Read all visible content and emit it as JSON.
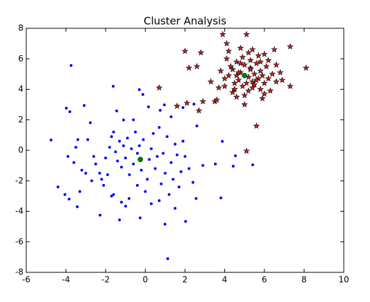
{
  "chart_data": {
    "type": "scatter",
    "title": "Cluster Analysis",
    "xlim": [
      -6,
      10
    ],
    "ylim": [
      -8,
      8
    ],
    "xticks": [
      -6,
      -4,
      -2,
      0,
      2,
      4,
      6,
      8,
      10
    ],
    "yticks": [
      -8,
      -6,
      -4,
      -2,
      0,
      2,
      4,
      6,
      8
    ],
    "series": [
      {
        "color": "#0000ff",
        "marker": "dot",
        "x": [
          -4.75,
          -3.74,
          -3.98,
          -3.8,
          -3.08,
          -2.77,
          -1.62,
          -0.3,
          -0.12,
          0.16,
          -1.44,
          -1.1,
          1.13,
          0.99,
          2.03,
          2.56,
          2.9,
          3.88,
          3.81,
          4.43,
          4.54,
          5.41,
          3.53,
          0.75,
          0.96,
          2.45,
          -2.28,
          -4.4,
          -4.05,
          -3.84,
          -3.43,
          -1.3,
          -0.26,
          -0.99,
          -0.82,
          -3.9,
          -3.5,
          -3.4,
          -3.6,
          -3.2,
          -3.0,
          -2.6,
          -2.5,
          -2.3,
          -2.2,
          -2.1,
          -1.9,
          -1.8,
          -1.7,
          -1.6,
          -1.5,
          -1.4,
          -1.3,
          -1.2,
          -1.1,
          -1.0,
          -0.9,
          -0.8,
          -0.7,
          -0.6,
          -0.5,
          -0.4,
          -0.3,
          -0.2,
          -0.1,
          0.0,
          0.2,
          0.3,
          0.4,
          0.5,
          0.6,
          0.7,
          0.8,
          0.9,
          1.0,
          1.1,
          1.2,
          1.3,
          1.4,
          1.5,
          1.6,
          1.7,
          1.8,
          1.9,
          2.0,
          2.2,
          2.4,
          2.6,
          -2.0,
          -1.6,
          -1.2,
          -0.4,
          0.3,
          1.5,
          -2.7,
          -3.3,
          -1.7,
          -0.6,
          0.1,
          1.3,
          1.9,
          -2.9,
          0.7
        ],
        "y": [
          0.68,
          5.56,
          2.76,
          2.53,
          2.94,
          1.81,
          4.2,
          3.98,
          3.66,
          2.85,
          2.58,
          1.99,
          -7.1,
          -4.84,
          -4.66,
          -3.16,
          -0.99,
          0.59,
          -3.12,
          -1.04,
          -0.36,
          -0.95,
          -0.9,
          2.62,
          2.98,
          3.03,
          -4.25,
          -2.4,
          -2.9,
          -3.2,
          -3.7,
          -4.56,
          -4.43,
          -3.66,
          -3.16,
          -0.4,
          0.2,
          0.7,
          -0.8,
          -1.3,
          -1.5,
          -0.4,
          -0.9,
          -1.5,
          -1.9,
          -2.3,
          -1.6,
          0.2,
          0.9,
          1.2,
          -0.1,
          -0.7,
          0.6,
          -1.1,
          0.3,
          -0.5,
          0.8,
          -1.6,
          0.1,
          -0.9,
          1.2,
          -0.2,
          0.3,
          -1.3,
          0.7,
          -2.7,
          -0.6,
          0.1,
          1.1,
          -1.2,
          -0.4,
          1.5,
          -2.2,
          -0.2,
          -1.5,
          0.9,
          -2.9,
          -0.8,
          -1.9,
          0.4,
          -0.3,
          -2.4,
          -1.4,
          0.6,
          -0.4,
          -1.2,
          -2.1,
          1.6,
          -0.5,
          -2.9,
          -3.4,
          -2.3,
          -3.5,
          -3.8,
          -2.0,
          -2.7,
          -3.0,
          2.0,
          -1.9,
          2.2,
          2.8,
          0.7,
          -3.3
        ]
      },
      {
        "color": "#cc1f1f",
        "marker": "star",
        "x": [
          3.9,
          5.1,
          4.1,
          2.0,
          2.8,
          7.3,
          8.1,
          2.2,
          2.6,
          0.7,
          1.6,
          2.1,
          2.7,
          2.9,
          3.5,
          5.6,
          5.1,
          3.3,
          7.3,
          6.5,
          4.2,
          4.4,
          4.5,
          4.6,
          4.7,
          4.8,
          4.9,
          5.0,
          5.2,
          5.3,
          5.4,
          5.5,
          5.6,
          5.7,
          5.8,
          6.0,
          6.2,
          6.4,
          4.0,
          4.3,
          4.5,
          4.7,
          4.9,
          5.1,
          5.3,
          5.5,
          5.7,
          5.9,
          6.1,
          6.3,
          3.8,
          4.1,
          4.4,
          4.6,
          4.8,
          5.0,
          5.2,
          5.4,
          5.6,
          5.8,
          6.0,
          6.6,
          3.6,
          4.0,
          4.6,
          5.2,
          5.8,
          6.2,
          6.8,
          4.2,
          4.8,
          5.4,
          6.0,
          6.6,
          3.7,
          5.0,
          5.9,
          4.5,
          5.3,
          6.9
        ],
        "y": [
          7.6,
          7.6,
          7.0,
          6.5,
          6.4,
          6.8,
          5.4,
          5.4,
          5.5,
          4.1,
          2.9,
          3.1,
          2.6,
          3.2,
          3.2,
          1.6,
          -0.05,
          4.5,
          4.2,
          6.6,
          4.9,
          5.3,
          4.4,
          5.8,
          4.6,
          5.1,
          4.2,
          5.6,
          4.8,
          5.4,
          4.5,
          5.0,
          5.7,
          4.7,
          5.2,
          4.4,
          5.9,
          5.0,
          4.7,
          5.5,
          4.0,
          5.1,
          6.1,
          4.4,
          5.9,
          4.3,
          6.2,
          4.9,
          5.5,
          3.9,
          5.2,
          6.0,
          3.8,
          4.9,
          5.7,
          3.6,
          6.4,
          4.1,
          4.6,
          5.8,
          3.7,
          5.6,
          3.3,
          4.2,
          3.5,
          3.9,
          4.0,
          4.7,
          5.1,
          6.5,
          6.7,
          6.6,
          6.3,
          4.5,
          4.1,
          3.0,
          3.4,
          4.0,
          5.3,
          4.6
        ]
      },
      {
        "color": "#007f00",
        "marker": "big-dot",
        "x": [
          -0.25,
          5.0
        ],
        "y": [
          -0.6,
          4.9
        ]
      }
    ]
  }
}
